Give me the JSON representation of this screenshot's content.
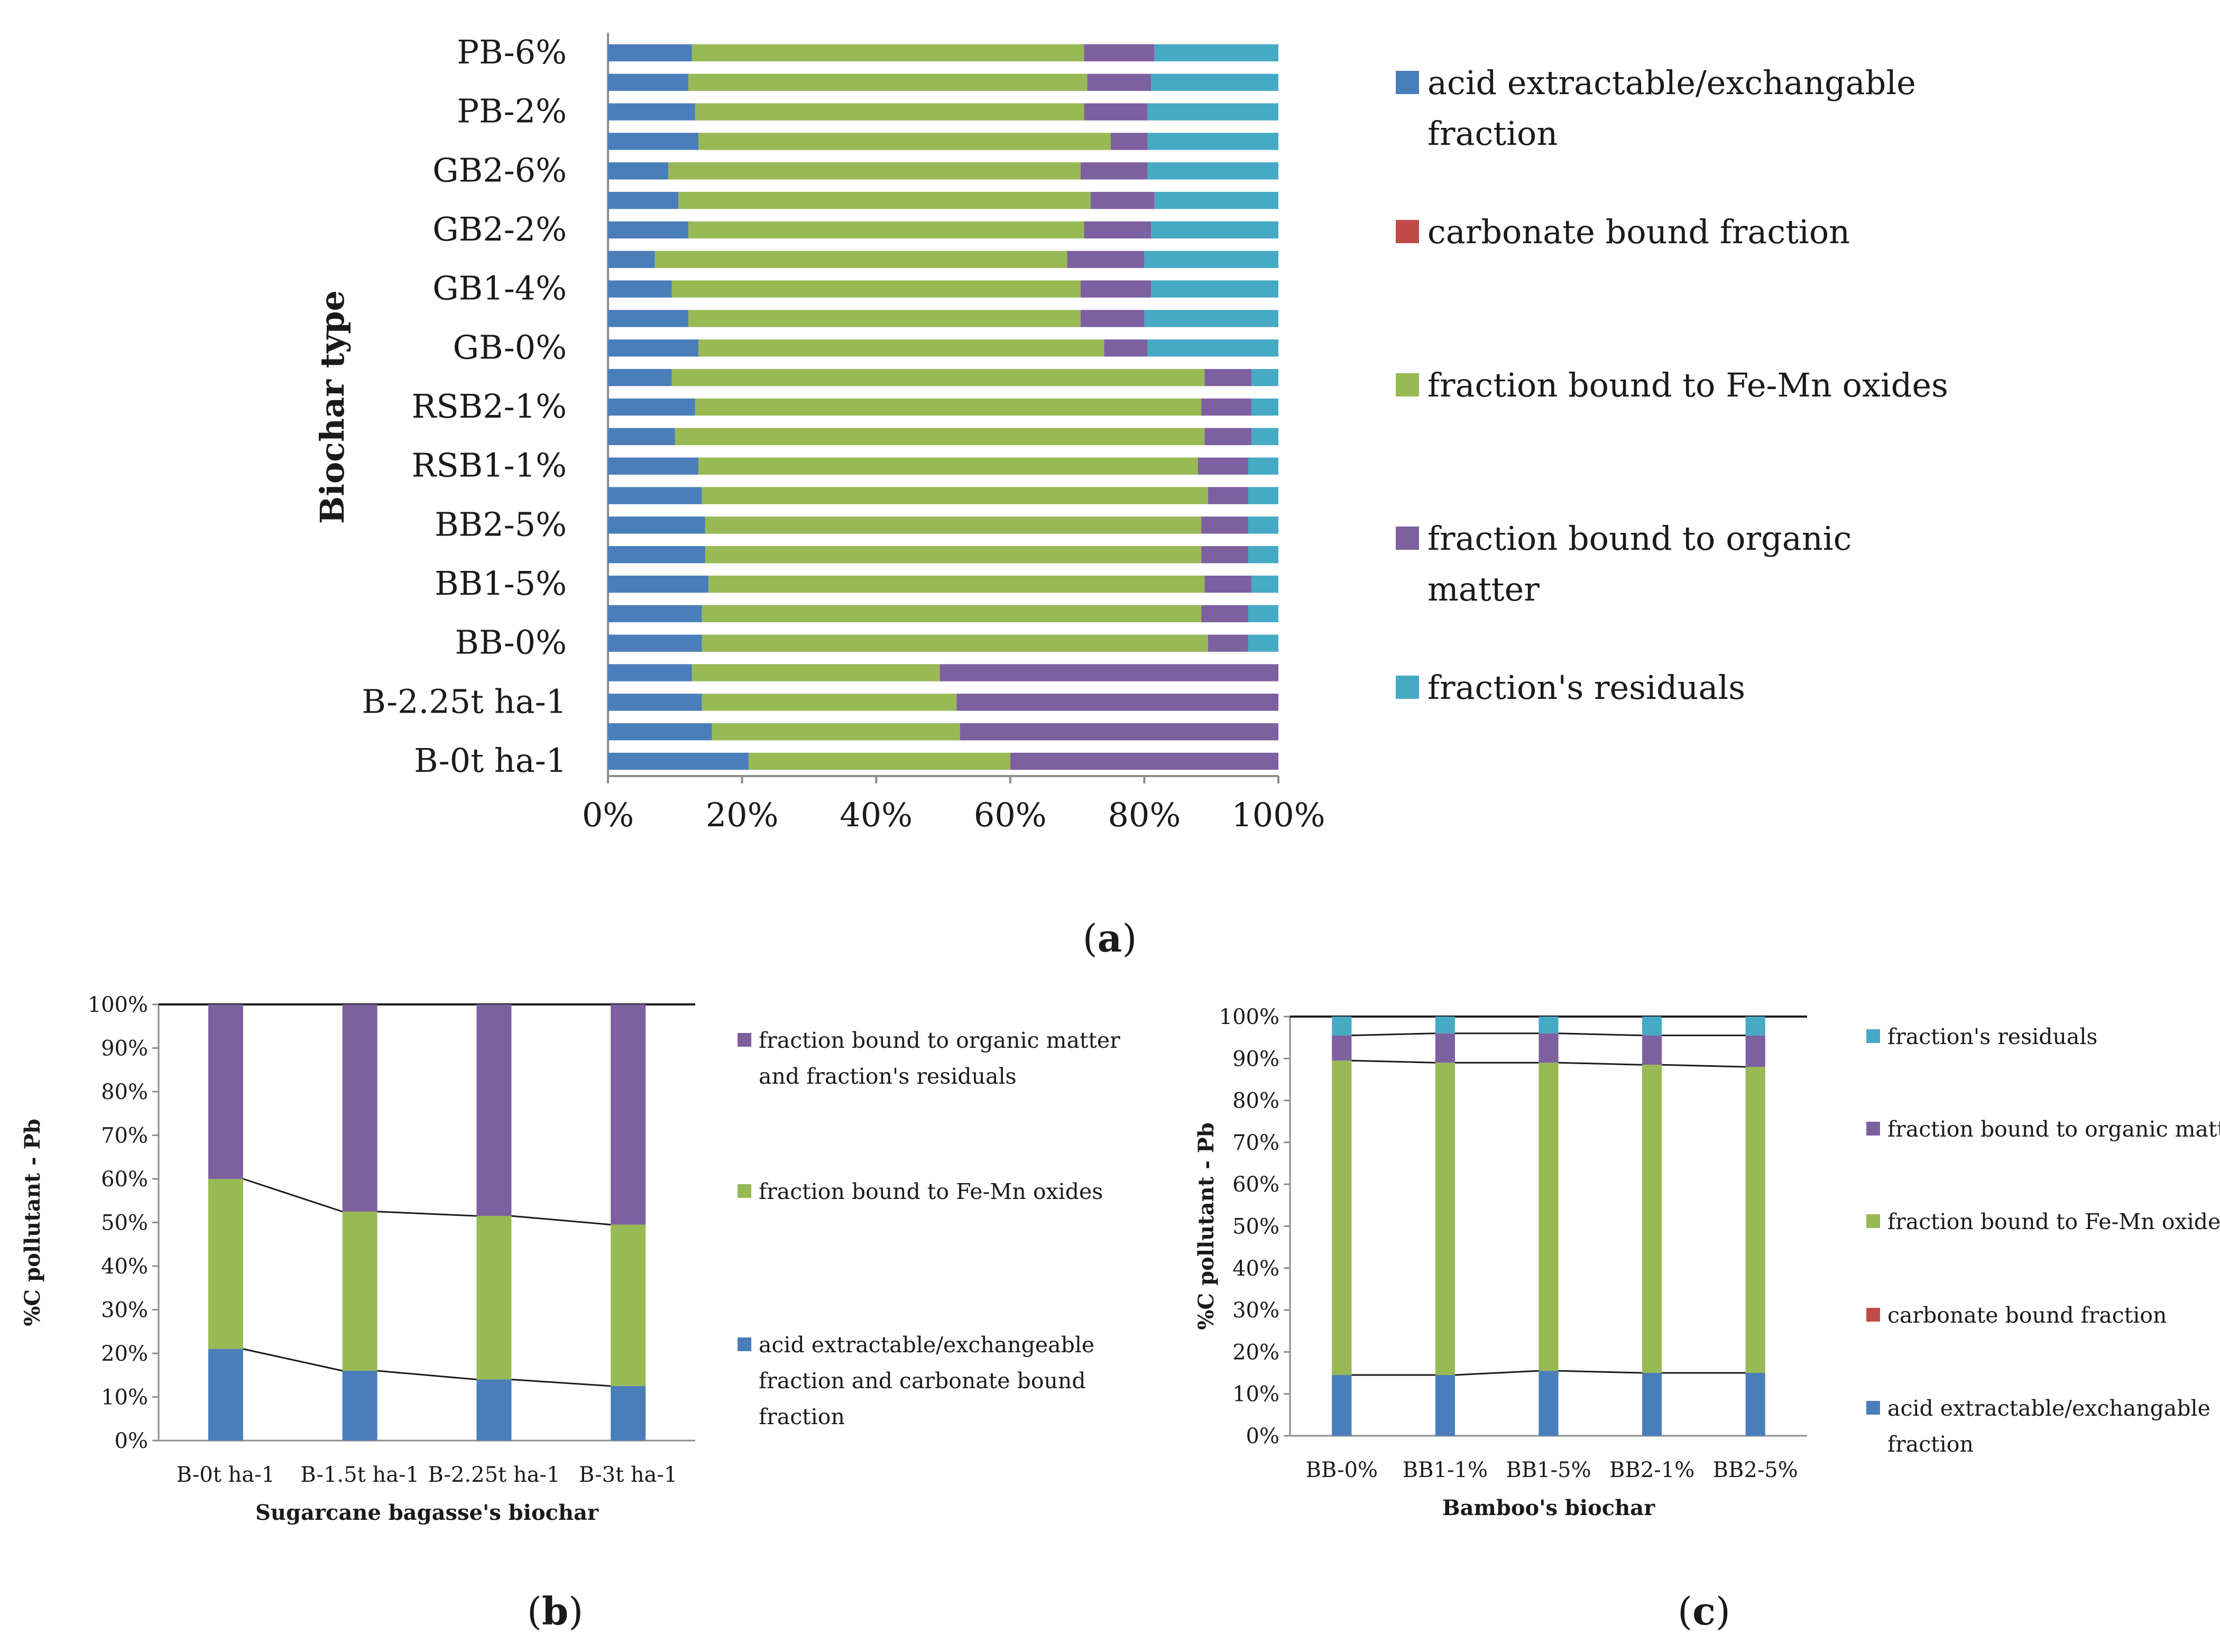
{
  "colors": {
    "acid": "#4a7ebb",
    "carbonate": "#be4b48",
    "fe_mn": "#98b954",
    "organic": "#7d60a0",
    "residual": "#46aac5",
    "axis": "#8c8c8c",
    "connector": "#1a1a1a"
  },
  "panel_labels": {
    "a": "(a)",
    "b": "(b)",
    "c": "(c)",
    "a_letter": "a",
    "b_letter": "b",
    "c_letter": "c"
  },
  "chart_data": [
    {
      "id": "a",
      "type": "bar",
      "orientation": "horizontal",
      "stacked": true,
      "title": "",
      "xlabel": "",
      "ylabel": "Biochar type",
      "xlim": [
        0,
        100
      ],
      "x_ticks": [
        "0%",
        "20%",
        "40%",
        "60%",
        "80%",
        "100%"
      ],
      "y_tick_labels": [
        "PB-6%",
        "PB-2%",
        "GB2-6%",
        "GB2-2%",
        "GB1-4%",
        "GB-0%",
        "RSB2-1%",
        "RSB1-1%",
        "BB2-5%",
        "BB1-5%",
        "BB-0%",
        "B-2.25t ha-1",
        "B-0t ha-1"
      ],
      "legend": [
        "acid extractable/exchangable fraction",
        "carbonate bound fraction",
        "fraction bound to Fe-Mn oxides",
        "fraction bound to organic matter",
        "fraction's residuals"
      ],
      "legend_position": "right",
      "bars_top_to_bottom": [
        [
          12.5,
          0,
          58.5,
          10.5,
          18.5
        ],
        [
          12.0,
          0,
          59.5,
          9.5,
          19.0
        ],
        [
          13.0,
          0,
          58.0,
          9.5,
          19.5
        ],
        [
          13.5,
          0,
          61.5,
          5.5,
          19.5
        ],
        [
          9.0,
          0,
          61.5,
          10.0,
          19.5
        ],
        [
          10.5,
          0,
          61.5,
          9.5,
          18.5
        ],
        [
          12.0,
          0,
          59.0,
          10.0,
          19.0
        ],
        [
          7.0,
          0,
          61.5,
          11.5,
          20.0
        ],
        [
          9.5,
          0,
          61.0,
          10.5,
          19.0
        ],
        [
          12.0,
          0,
          58.5,
          9.5,
          20.0
        ],
        [
          13.5,
          0,
          60.5,
          6.5,
          19.5
        ],
        [
          9.5,
          0,
          79.5,
          7.0,
          4.0
        ],
        [
          13.0,
          0,
          75.5,
          7.5,
          4.0
        ],
        [
          10.0,
          0,
          79.0,
          7.0,
          4.0
        ],
        [
          13.5,
          0,
          74.5,
          7.5,
          4.5
        ],
        [
          14.0,
          0,
          75.5,
          6.0,
          4.5
        ],
        [
          14.5,
          0,
          74.0,
          7.0,
          4.5
        ],
        [
          14.5,
          0,
          74.0,
          7.0,
          4.5
        ],
        [
          15.0,
          0,
          74.0,
          7.0,
          4.0
        ],
        [
          14.0,
          0,
          74.5,
          7.0,
          4.5
        ],
        [
          14.0,
          0,
          75.5,
          6.0,
          4.5
        ],
        [
          12.5,
          0,
          37.0,
          50.5,
          0
        ],
        [
          14.0,
          0,
          38.0,
          48.0,
          0
        ],
        [
          15.5,
          0,
          37.0,
          47.5,
          0
        ],
        [
          21.0,
          0,
          39.0,
          40.0,
          0
        ]
      ]
    },
    {
      "id": "b",
      "type": "bar",
      "stacked": true,
      "title": "",
      "xlabel": "Sugarcane bagasse's biochar",
      "ylabel": "%C pollutant - Pb",
      "ylim": [
        0,
        100
      ],
      "y_ticks": [
        "0%",
        "10%",
        "20%",
        "30%",
        "40%",
        "50%",
        "60%",
        "70%",
        "80%",
        "90%",
        "100%"
      ],
      "categories": [
        "B-0t ha-1",
        "B-1.5t ha-1",
        "B-2.25t ha-1",
        "B-3t ha-1"
      ],
      "series": [
        {
          "name": "acid extractable/exchangeable fraction and carbonate bound fraction",
          "values": [
            21,
            16,
            14,
            12.5
          ]
        },
        {
          "name": "fraction bound to Fe-Mn oxides",
          "values": [
            39,
            36.5,
            37.5,
            37
          ]
        },
        {
          "name": "fraction bound to organic matter and fraction's residuals",
          "values": [
            40,
            47.5,
            48.5,
            50.5
          ]
        }
      ],
      "legend_order": [
        "fraction bound to organic matter and fraction's residuals",
        "fraction bound to Fe-Mn oxides",
        "acid extractable/exchangeable fraction and carbonate bound fraction"
      ],
      "legend_position": "right"
    },
    {
      "id": "c",
      "type": "bar",
      "stacked": true,
      "title": "",
      "xlabel": "Bamboo's biochar",
      "ylabel": "%C pollutant - Pb",
      "ylim": [
        0,
        100
      ],
      "y_ticks": [
        "0%",
        "10%",
        "20%",
        "30%",
        "40%",
        "50%",
        "60%",
        "70%",
        "80%",
        "90%",
        "100%"
      ],
      "categories": [
        "BB-0%",
        "BB1-1%",
        "BB1-5%",
        "BB2-1%",
        "BB2-5%"
      ],
      "series": [
        {
          "name": "acid extractable/exchangable fraction",
          "values": [
            14.5,
            14.5,
            15.5,
            15,
            15
          ]
        },
        {
          "name": "carbonate bound fraction",
          "values": [
            0,
            0,
            0,
            0,
            0
          ]
        },
        {
          "name": "fraction bound to Fe-Mn oxides",
          "values": [
            75,
            74.5,
            73.5,
            73.5,
            73
          ]
        },
        {
          "name": "fraction bound to organic matter",
          "values": [
            6,
            7,
            7,
            7,
            7.5
          ]
        },
        {
          "name": "fraction's residuals",
          "values": [
            4.5,
            4,
            4,
            4.5,
            4.5
          ]
        }
      ],
      "legend_order": [
        "fraction's residuals",
        "fraction bound to organic matter",
        "fraction bound to Fe-Mn oxides",
        "carbonate bound fraction",
        "acid extractable/exchangable fraction"
      ],
      "legend_position": "right"
    }
  ]
}
